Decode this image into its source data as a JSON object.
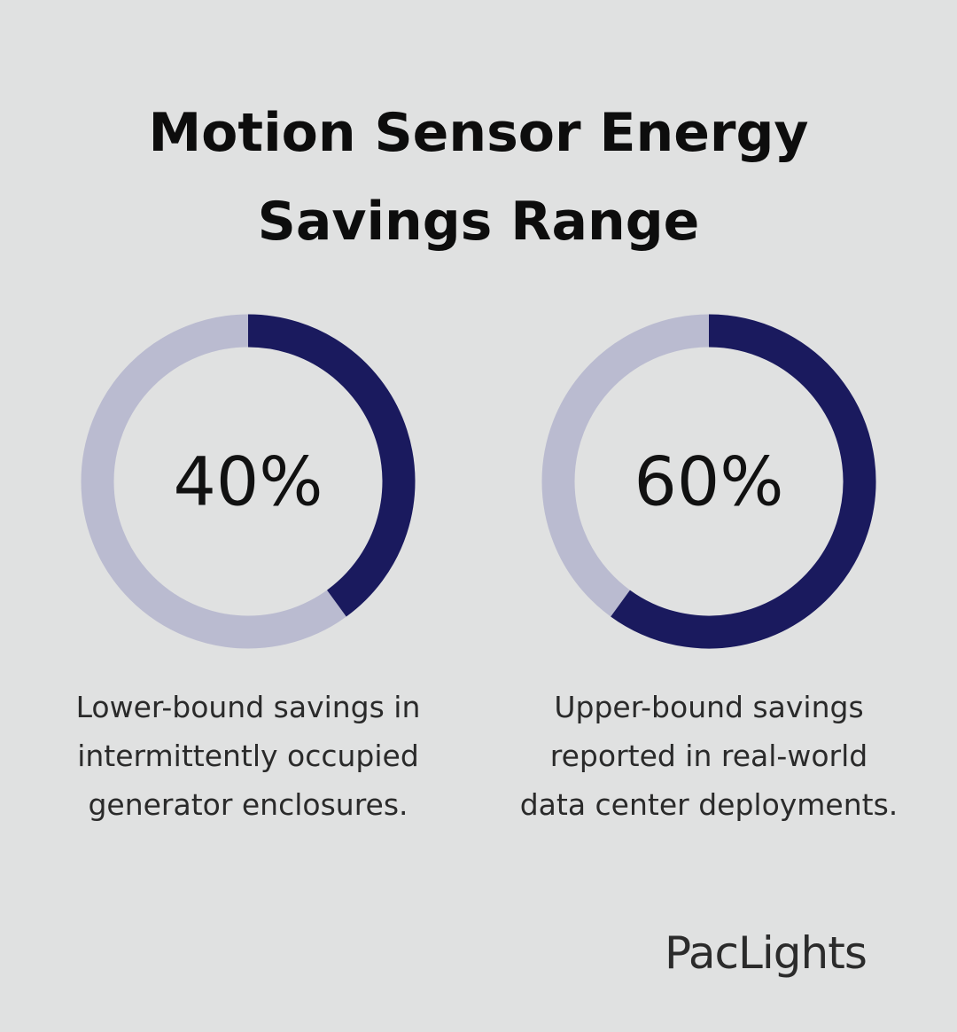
{
  "title_lines": [
    "Motion Sensor Energy",
    "Savings Range"
  ],
  "colors": {
    "background": "#e0e1e1",
    "filled": "#1a1a5e",
    "track": "#babbd0"
  },
  "chart_data": [
    {
      "type": "pie",
      "value": 40,
      "label": "40%",
      "caption_lines": [
        "Lower-bound savings in",
        "intermittently occupied",
        "generator enclosures."
      ]
    },
    {
      "type": "pie",
      "value": 60,
      "label": "60%",
      "caption_lines": [
        "Upper-bound savings",
        "reported in real-world",
        "data center deployments."
      ]
    }
  ],
  "brand": {
    "logo_text": "PacLights"
  }
}
